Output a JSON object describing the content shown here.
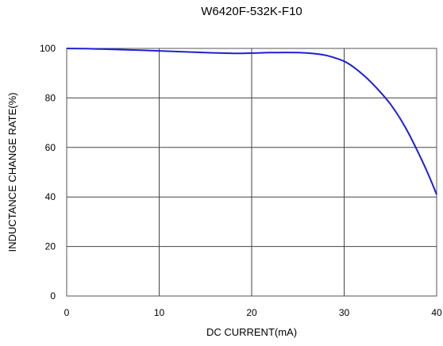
{
  "chart_data": {
    "type": "line",
    "title": "W6420F-532K-F10",
    "xlabel": "DC CURRENT(mA)",
    "ylabel": "INDUCTANCE CHANGE RATE(%)",
    "xlim": [
      0,
      40
    ],
    "ylim": [
      0,
      100
    ],
    "x_ticks": [
      0,
      10,
      20,
      30,
      40
    ],
    "y_ticks": [
      0,
      20,
      40,
      60,
      80,
      100
    ],
    "grid": true,
    "series": [
      {
        "color": "#1f1fd6",
        "x": [
          0,
          2,
          5,
          10,
          15,
          18,
          20,
          22,
          25,
          27,
          28,
          29,
          30,
          31,
          32,
          33,
          34,
          35,
          36,
          37,
          38,
          39,
          40
        ],
        "y": [
          100,
          99.9,
          99.6,
          99.0,
          98.3,
          98.0,
          98.1,
          98.3,
          98.3,
          97.8,
          97.2,
          96.2,
          94.8,
          92.5,
          89.5,
          86,
          82,
          77.5,
          72,
          65.5,
          58,
          50,
          41
        ]
      }
    ]
  }
}
